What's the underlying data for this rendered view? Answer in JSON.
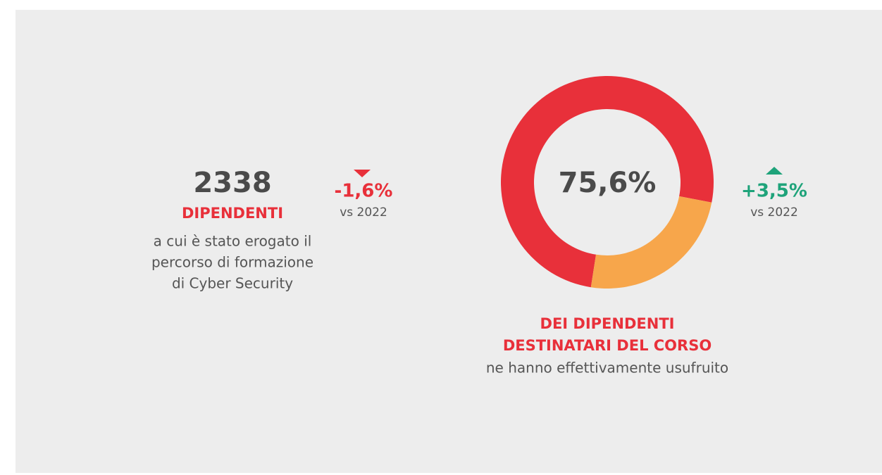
{
  "left": {
    "number": "2338",
    "label": "DIPENDENTI",
    "description": [
      "a cui è stato erogato il",
      "percorso di formazione",
      "di Cyber Security"
    ],
    "change": "-1,6%",
    "comparison": "vs 2022"
  },
  "chart_data": {
    "type": "donut",
    "values": [
      75.6,
      24.4
    ],
    "colors": [
      "#e8303a",
      "#f7a64b"
    ],
    "center_label": "75,6%",
    "change": "+3,5%",
    "comparison": "vs 2022",
    "caption": [
      "DEI DIPENDENTI",
      "DESTINATARI DEL CORSO"
    ],
    "description": "ne hanno effettivamente usufruito"
  }
}
